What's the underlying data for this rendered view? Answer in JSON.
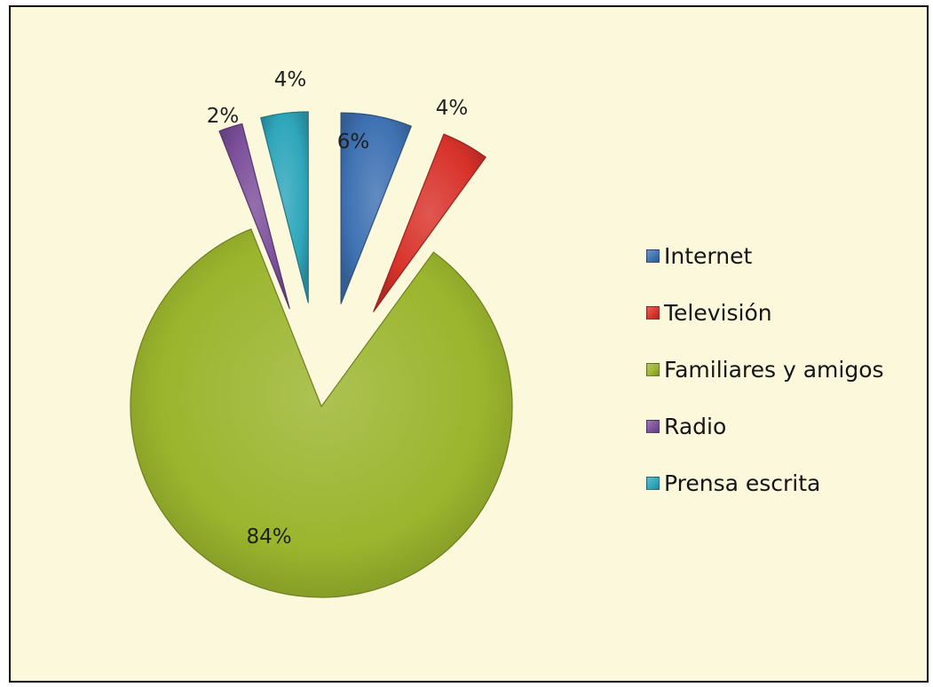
{
  "chart_data": {
    "type": "pie",
    "title": "",
    "legend_position": "right",
    "series": [
      {
        "name": "Internet",
        "value": 6,
        "label": "6%",
        "color": "#3f72b3"
      },
      {
        "name": "Televisión",
        "value": 4,
        "label": "4%",
        "color": "#d8322a"
      },
      {
        "name": "Familiares y amigos",
        "value": 84,
        "label": "84%",
        "color": "#9bb52d"
      },
      {
        "name": "Radio",
        "value": 2,
        "label": "2%",
        "color": "#7c4f9b"
      },
      {
        "name": "Prensa escrita",
        "value": 4,
        "label": "4%",
        "color": "#2fa6bb"
      }
    ]
  }
}
